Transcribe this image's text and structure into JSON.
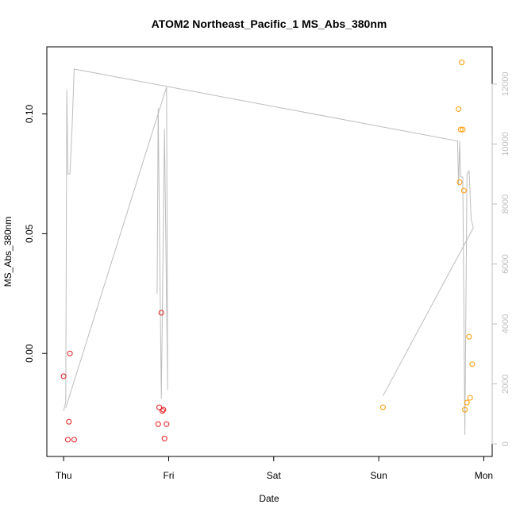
{
  "chart_data": {
    "type": "scatter",
    "title": "ATOM2 Northeast_Pacific_1 MS_Abs_380nm",
    "xlabel": "Date",
    "ylabel": "MS_Abs_380nm",
    "x_ticks": [
      "Thu",
      "Fri",
      "Sat",
      "Sun",
      "Mon"
    ],
    "x_tick_values": [
      0,
      1,
      2,
      3,
      4
    ],
    "xlim": [
      -0.16,
      4.08
    ],
    "y_ticks": [
      0.0,
      0.05,
      0.1
    ],
    "y_tick_labels": [
      "0.00",
      "0.05",
      "0.10"
    ],
    "ylim": [
      -0.043,
      0.128
    ],
    "y2_ticks": [
      0,
      2000,
      4000,
      6000,
      8000,
      10000,
      12000
    ],
    "y2_tick_labels": [
      "0",
      "2000",
      "4000",
      "6000",
      "8000",
      "10000",
      "12000"
    ],
    "y2lim": [
      -420,
      13240
    ],
    "grid": false,
    "colors": {
      "red": "#e41a1c",
      "orange": "#ff9900",
      "gray_line": "#bdbdbd",
      "axis": "#000000"
    },
    "series": [
      {
        "color": "red",
        "points": [
          [
            0.0,
            -0.0095
          ],
          [
            0.04,
            -0.036
          ],
          [
            0.05,
            -0.0285
          ],
          [
            0.06,
            0.0
          ],
          [
            0.1,
            -0.036
          ],
          [
            0.9,
            -0.0295
          ],
          [
            0.91,
            -0.0225
          ],
          [
            0.93,
            0.017
          ],
          [
            0.94,
            -0.024
          ],
          [
            0.95,
            -0.0235
          ],
          [
            0.96,
            -0.0355
          ],
          [
            0.98,
            -0.0295
          ]
        ]
      },
      {
        "color": "orange",
        "points": [
          [
            3.04,
            -0.0225
          ],
          [
            3.76,
            0.102
          ],
          [
            3.77,
            0.0715
          ],
          [
            3.78,
            0.0935
          ],
          [
            3.79,
            0.1215
          ],
          [
            3.8,
            0.0935
          ],
          [
            3.81,
            0.068
          ],
          [
            3.82,
            -0.0235
          ],
          [
            3.84,
            -0.0205
          ],
          [
            3.86,
            0.007
          ],
          [
            3.87,
            -0.0185
          ],
          [
            3.89,
            -0.0045
          ]
        ]
      },
      {
        "color": "gray_line",
        "axis": "right",
        "kind": "line",
        "points": [
          [
            0.0,
            1100
          ],
          [
            0.02,
            1400
          ],
          [
            0.03,
            11800
          ],
          [
            0.04,
            9000
          ],
          [
            0.06,
            9000
          ],
          [
            0.08,
            10500
          ],
          [
            0.1,
            12500
          ],
          [
            3.75,
            10100
          ],
          [
            3.76,
            8600
          ],
          [
            3.77,
            10100
          ],
          [
            3.78,
            8900
          ],
          [
            3.8,
            8900
          ],
          [
            3.82,
            300
          ],
          [
            3.84,
            9000
          ],
          [
            3.86,
            9100
          ],
          [
            3.88,
            7500
          ],
          [
            3.9,
            7200
          ],
          [
            3.04,
            1600
          ]
        ]
      },
      {
        "color": "gray_line",
        "axis": "right",
        "kind": "line",
        "points": [
          [
            0.02,
            1200
          ],
          [
            0.98,
            11900
          ],
          [
            0.99,
            1800
          ],
          [
            0.96,
            10500
          ],
          [
            0.93,
            1500
          ],
          [
            0.9,
            11200
          ],
          [
            0.89,
            5000
          ]
        ]
      }
    ]
  }
}
